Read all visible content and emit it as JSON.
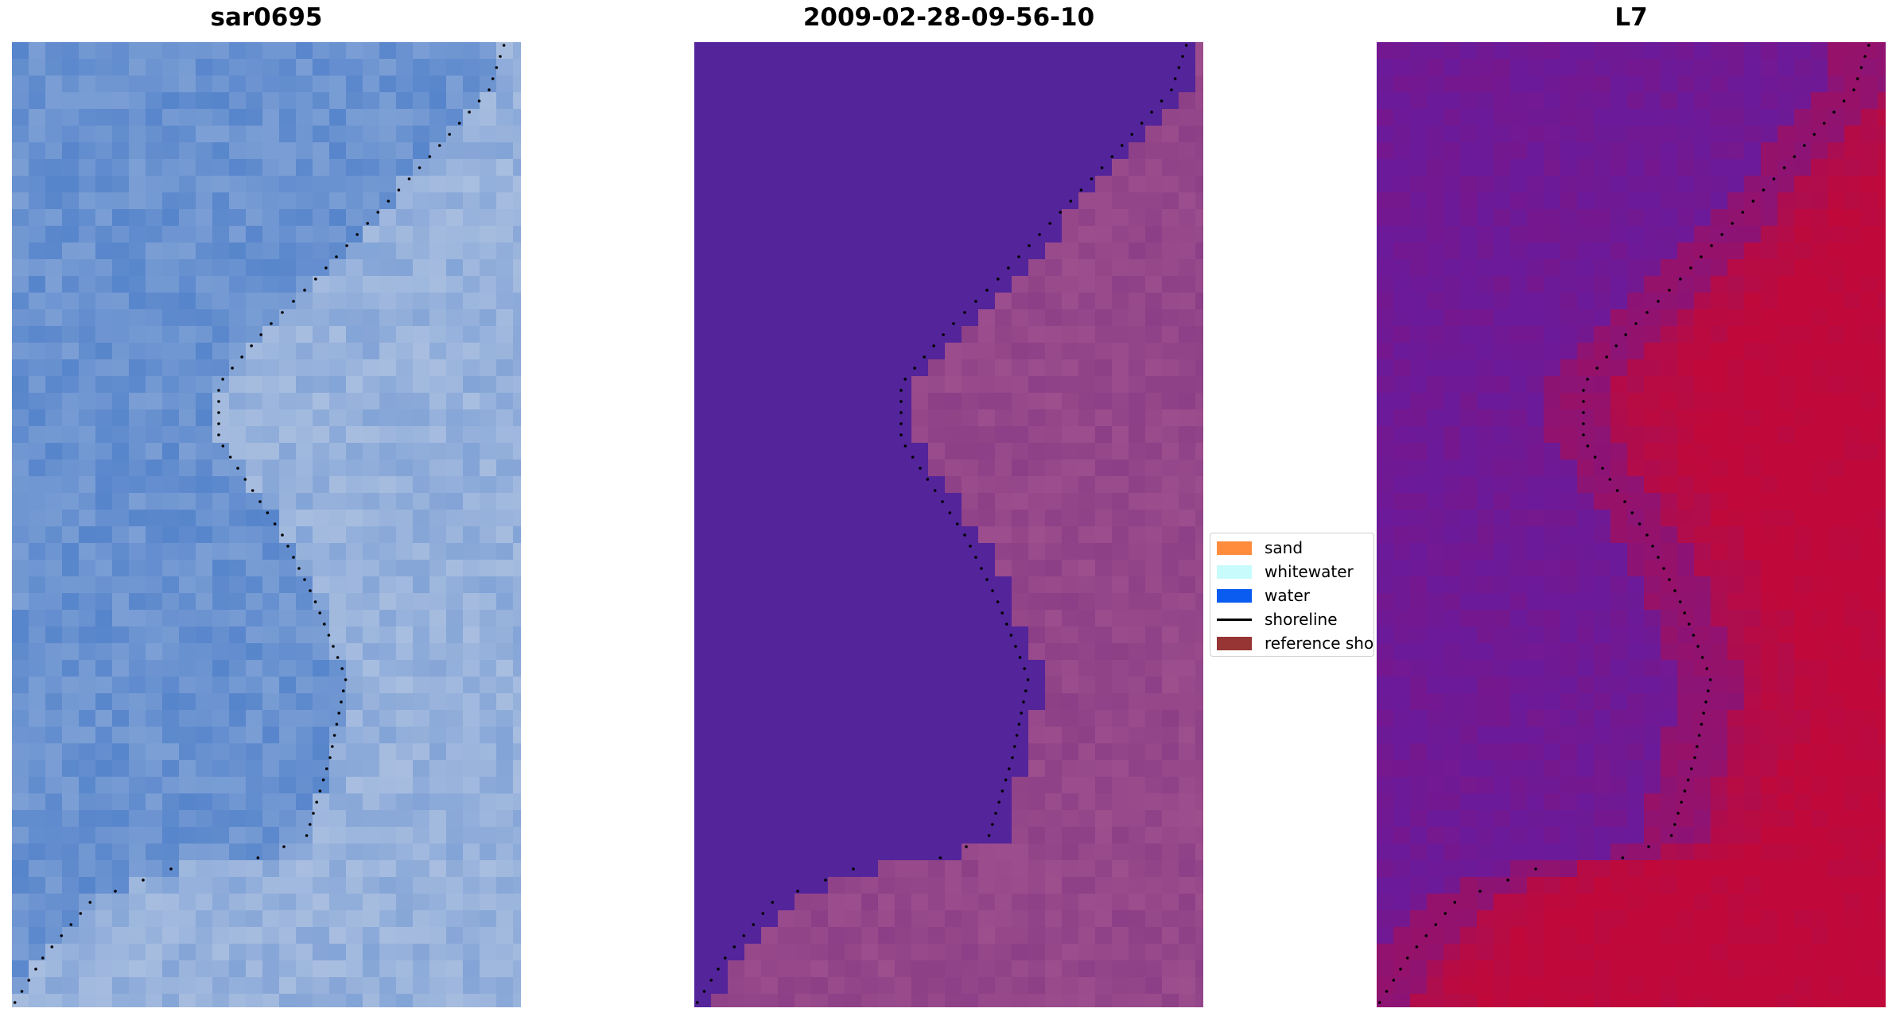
{
  "panels": [
    {
      "id": "rgb",
      "title": "sar0695"
    },
    {
      "id": "classification",
      "title": "2009-02-28-09-56-10"
    },
    {
      "id": "index",
      "title": "L7"
    }
  ],
  "legend": {
    "items": [
      {
        "label": "sand",
        "color": "#ff8c3c",
        "kind": "patch"
      },
      {
        "label": "whitewater",
        "color": "#c8fcfc",
        "kind": "patch"
      },
      {
        "label": "water",
        "color": "#0a5cf0",
        "kind": "patch"
      },
      {
        "label": "shoreline",
        "color": "#000000",
        "kind": "line"
      },
      {
        "label": "reference shoreline",
        "color": "#973434",
        "kind": "patch"
      }
    ]
  },
  "colors": {
    "water_rgb": "#4a7cc8",
    "classified_water": "#53249a",
    "classified_sand": "#8c3f86",
    "index_low": "#6b1a9a",
    "index_high": "#c0093a",
    "shoreline_dots": "#000000"
  }
}
